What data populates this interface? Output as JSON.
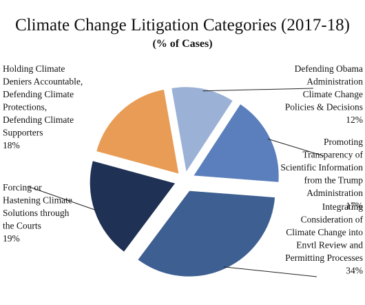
{
  "chart_data": {
    "type": "pie",
    "title": "Climate Change Litigation Categories (2017-18)",
    "subtitle": "(% of Cases)",
    "exploded": true,
    "slices": [
      {
        "label_lines": [
          "Defending Obama",
          "Administration",
          "Climate Change",
          "Policies & Decisions",
          "12%"
        ],
        "value": 12,
        "color": "#9bb1d6"
      },
      {
        "label_lines": [
          "Promoting",
          "Transparency of",
          "Scientific Information",
          "from the Trump",
          "Administration",
          "17%"
        ],
        "value": 17,
        "color": "#5b7fbc"
      },
      {
        "label_lines": [
          "Integrating",
          "Consideration of",
          "Climate Change into",
          "Envtl Review and",
          "Permitting Processes",
          "34%"
        ],
        "value": 34,
        "color": "#3e5f91"
      },
      {
        "label_lines": [
          "Forcing or",
          "Hastening Climate",
          "Solutions through",
          "the Courts",
          "19%"
        ],
        "value": 19,
        "color": "#1f3154"
      },
      {
        "label_lines": [
          "Holding Climate",
          "Deniers Accountable,",
          "Defending Climate",
          "Protections,",
          "Defending Climate",
          "Supporters",
          "18%"
        ],
        "value": 18,
        "color": "#e89c55"
      }
    ]
  }
}
